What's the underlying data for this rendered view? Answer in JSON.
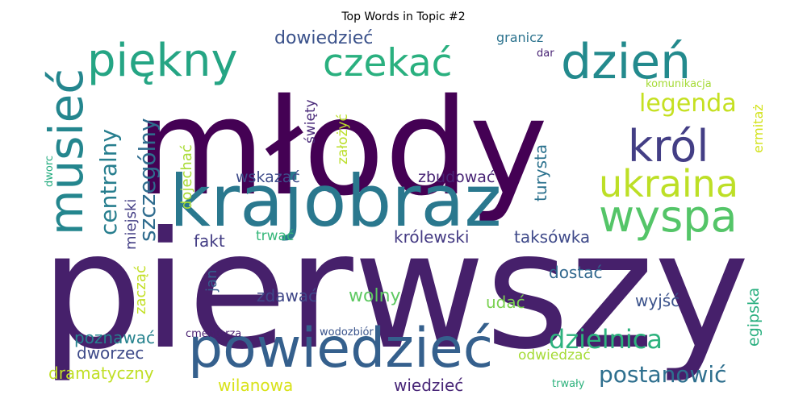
{
  "chart_data": {
    "type": "wordcloud",
    "title": "Top Words in Topic #2",
    "words": [
      {
        "text": "pierwszy",
        "color": "#46206b"
      },
      {
        "text": "młody",
        "color": "#440154"
      },
      {
        "text": "powiedzieć",
        "color": "#35608d"
      },
      {
        "text": "krajobraz",
        "color": "#2a788e"
      },
      {
        "text": "dzień",
        "color": "#238a8d"
      },
      {
        "text": "piękny",
        "color": "#25a584"
      },
      {
        "text": "czekać",
        "color": "#2ab07f"
      },
      {
        "text": "musieć",
        "color": "#24868e"
      },
      {
        "text": "wyspa",
        "color": "#54c568"
      },
      {
        "text": "król",
        "color": "#433e85"
      },
      {
        "text": "ukraina",
        "color": "#bddf26"
      },
      {
        "text": "legenda",
        "color": "#c5e021"
      },
      {
        "text": "centralny",
        "color": "#277e8e"
      },
      {
        "text": "szczególny",
        "color": "#2f6c8e"
      },
      {
        "text": "dzielnica",
        "color": "#2db27d"
      },
      {
        "text": "postanowić",
        "color": "#2e6f8e"
      },
      {
        "text": "dowiedzieć",
        "color": "#3b528b"
      },
      {
        "text": "królewski",
        "color": "#443a83"
      },
      {
        "text": "taksówka",
        "color": "#3e4989"
      },
      {
        "text": "dworzec",
        "color": "#3e4a89"
      },
      {
        "text": "poznawać",
        "color": "#26828e"
      },
      {
        "text": "dramatyczny",
        "color": "#c0df25"
      },
      {
        "text": "wilanowa",
        "color": "#d8e219"
      },
      {
        "text": "wiedzieć",
        "color": "#482677"
      },
      {
        "text": "zdawać",
        "color": "#3f4788"
      },
      {
        "text": "wolny",
        "color": "#5ec962"
      },
      {
        "text": "dostać",
        "color": "#31688e"
      },
      {
        "text": "wyjść",
        "color": "#3b528b"
      },
      {
        "text": "zbudować",
        "color": "#482475"
      },
      {
        "text": "wskazać",
        "color": "#3e4c8a"
      },
      {
        "text": "fakt",
        "color": "#433d84"
      },
      {
        "text": "trwać",
        "color": "#35b779"
      },
      {
        "text": "turysta",
        "color": "#2c728e"
      },
      {
        "text": "udać",
        "color": "#7ad151"
      },
      {
        "text": "odwiedzać",
        "color": "#a5db36"
      },
      {
        "text": "egipska",
        "color": "#29af7f"
      },
      {
        "text": "miejski",
        "color": "#433e85"
      },
      {
        "text": "dojechać",
        "color": "#a8db34"
      },
      {
        "text": "święty",
        "color": "#4a2b7a"
      },
      {
        "text": "założyć",
        "color": "#bade28"
      },
      {
        "text": "zacząć",
        "color": "#c2df23"
      },
      {
        "text": "jan",
        "color": "#355f8d"
      },
      {
        "text": "ermitaż",
        "color": "#d2e21b"
      },
      {
        "text": "granicz",
        "color": "#2c738e"
      },
      {
        "text": "dar",
        "color": "#482374"
      },
      {
        "text": "komunikacja",
        "color": "#a5db36"
      },
      {
        "text": "cmentarza",
        "color": "#481f70"
      },
      {
        "text": "wodozbiór",
        "color": "#3a548c"
      },
      {
        "text": "trwały",
        "color": "#2db27d"
      },
      {
        "text": "dworc",
        "color": "#27ad81"
      }
    ]
  }
}
